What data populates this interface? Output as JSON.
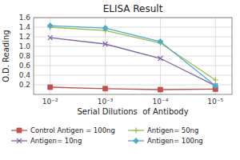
{
  "chart_data": {
    "type": "line",
    "title": "ELISA Result",
    "xlabel": "Serial Dilutions  of Antibody",
    "ylabel": "O.D. Reading",
    "x": [
      0.01,
      0.001,
      0.0001,
      1e-05
    ],
    "series": [
      {
        "name": "Control Antigen = 100ng",
        "color": "#c0504d",
        "marker": "square",
        "values": [
          0.15,
          0.12,
          0.1,
          0.11
        ]
      },
      {
        "name": "Antigen= 10ng",
        "color": "#8064a2",
        "marker": "x",
        "values": [
          1.18,
          1.05,
          0.75,
          0.18
        ]
      },
      {
        "name": "Antigen= 50ng",
        "color": "#9bbb59",
        "marker": "plus",
        "values": [
          1.4,
          1.33,
          1.07,
          0.3
        ]
      },
      {
        "name": "Antigen= 100ng",
        "color": "#4bacc6",
        "marker": "diamond",
        "values": [
          1.43,
          1.38,
          1.1,
          0.18
        ]
      }
    ],
    "log": "x",
    "xlim": [
      0.02,
      5e-06
    ],
    "xticks": [
      {
        "value": 0.01,
        "label": "10⁻²"
      },
      {
        "value": 0.001,
        "label": "10⁻³"
      },
      {
        "value": 0.0001,
        "label": "10⁻⁴"
      },
      {
        "value": 1e-05,
        "label": "10⁻⁵"
      }
    ],
    "ylim": [
      0,
      1.6
    ],
    "yticks": [
      0.2,
      0.4,
      0.6,
      0.8,
      {
        "value": 1.0,
        "label": "1.0"
      },
      1.2,
      1.4,
      1.6
    ],
    "grid": true,
    "legend": "bottom"
  }
}
